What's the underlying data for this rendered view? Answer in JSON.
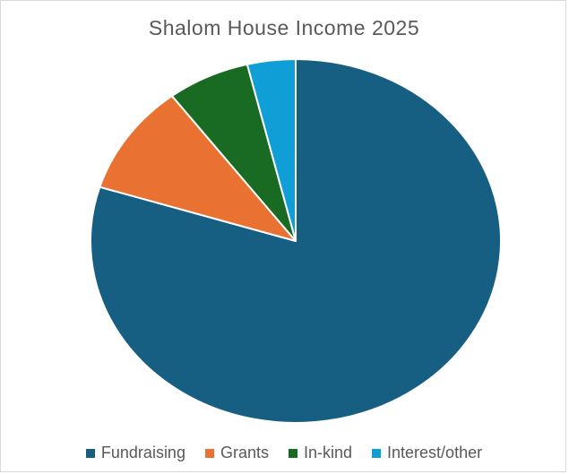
{
  "chart_data": {
    "type": "pie",
    "title": "Shalom House Income 2025",
    "categories": [
      "Fundraising",
      "Grants",
      "In-kind",
      "Interest/other"
    ],
    "values": [
      79.8,
      9.9,
      6.5,
      3.8
    ],
    "colors": [
      "#165E82",
      "#E97132",
      "#196B24",
      "#0F9ED5"
    ],
    "legend_position": "bottom",
    "start_angle_deg": 0,
    "direction": "clockwise"
  }
}
